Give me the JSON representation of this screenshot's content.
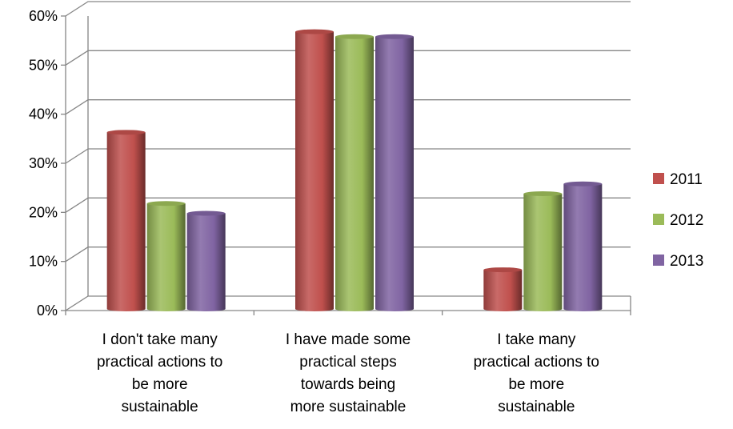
{
  "chart_data": {
    "type": "bar",
    "title": "",
    "xlabel": "",
    "ylabel": "",
    "categories": [
      [
        "I don't take many",
        "practical actions to",
        "be more",
        "sustainable"
      ],
      [
        "I have made some",
        "practical steps",
        "towards being",
        "more sustainable"
      ],
      [
        "I take many",
        "practical actions to",
        "be more",
        "sustainable"
      ]
    ],
    "series": [
      {
        "name": "2011",
        "color": "#C0504D",
        "values": [
          0.35,
          0.555,
          0.07
        ]
      },
      {
        "name": "2012",
        "color": "#9BBB59",
        "values": [
          0.205,
          0.545,
          0.225
        ]
      },
      {
        "name": "2013",
        "color": "#8064A2",
        "values": [
          0.185,
          0.545,
          0.245
        ]
      }
    ],
    "yticks": [
      "0%",
      "10%",
      "20%",
      "30%",
      "40%",
      "50%",
      "60%"
    ],
    "ylim": [
      0,
      0.6
    ],
    "grid": true,
    "legend_position": "right",
    "style": "3d-cylinder"
  }
}
